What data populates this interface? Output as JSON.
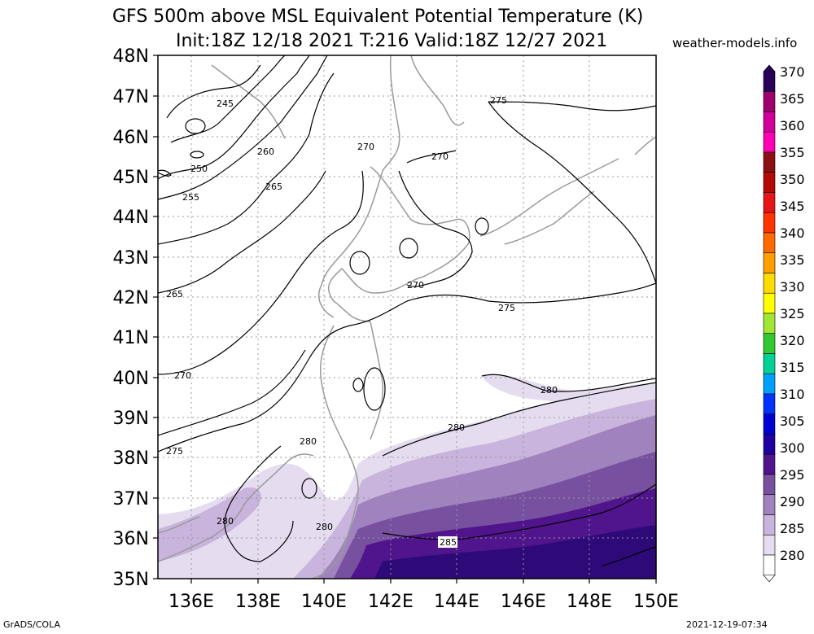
{
  "title": {
    "line1": "GFS 500m above MSL Equivalent Potential Temperature (K)",
    "line2": "Init:18Z 12/18 2021 T:216 Valid:18Z 12/27 2021"
  },
  "site": "weather-models.info",
  "footer": {
    "left": "GrADS/COLA",
    "right": "2021-12-19-07:34"
  },
  "map": {
    "lat_labels": [
      "48N",
      "47N",
      "46N",
      "45N",
      "44N",
      "43N",
      "42N",
      "41N",
      "40N",
      "39N",
      "38N",
      "37N",
      "36N",
      "35N"
    ],
    "lon_labels": [
      "136E",
      "138E",
      "140E",
      "142E",
      "144E",
      "146E",
      "148E",
      "150E"
    ],
    "contour_labels": [
      "245",
      "250",
      "255",
      "260",
      "265",
      "265",
      "270",
      "270",
      "270",
      "270",
      "275",
      "275",
      "275",
      "280",
      "280",
      "280",
      "280",
      "280",
      "285"
    ]
  },
  "colorbar": {
    "labels": [
      "370",
      "365",
      "360",
      "355",
      "350",
      "345",
      "340",
      "335",
      "330",
      "325",
      "320",
      "315",
      "310",
      "305",
      "300",
      "295",
      "290",
      "285",
      "280"
    ],
    "colors": [
      "#2a005a",
      "#a0006e",
      "#d2009a",
      "#ff00b4",
      "#8c0f14",
      "#b40a0a",
      "#e61414",
      "#ff3200",
      "#ff6a00",
      "#ffa000",
      "#ffdc00",
      "#ffff00",
      "#a0e632",
      "#32c832",
      "#00d296",
      "#00a0ff",
      "#0032ff",
      "#0000d2",
      "#1e00a0",
      "#50148c",
      "#7850a0",
      "#a082be",
      "#c8b4dc",
      "#e6dcf0",
      "#ffffff"
    ]
  }
}
